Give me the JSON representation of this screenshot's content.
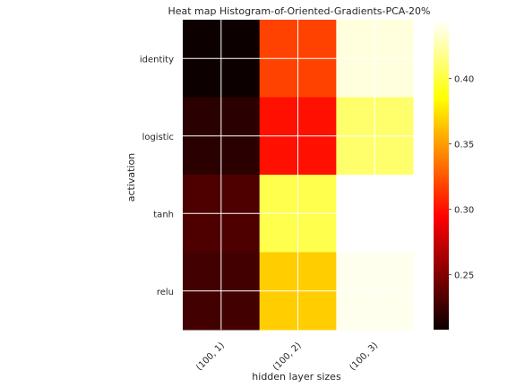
{
  "chart_data": {
    "type": "heatmap",
    "title": "Heat map Histogram-of-Oriented-Gradients-PCA-20%",
    "xlabel": "hidden layer sizes",
    "ylabel": "activation",
    "x_categories": [
      "(100, 1)",
      "(100, 2)",
      "(100, 3)"
    ],
    "y_categories": [
      "identity",
      "logistic",
      "tanh",
      "relu"
    ],
    "values": [
      [
        0.209,
        0.318,
        0.437
      ],
      [
        0.219,
        0.3,
        0.41
      ],
      [
        0.232,
        0.403,
        null
      ],
      [
        0.228,
        0.367,
        0.441
      ]
    ],
    "colormap": "hot",
    "vmin": 0.208,
    "vmax": 0.445,
    "colorbar_ticks": [
      0.25,
      0.3,
      0.35,
      0.4
    ],
    "colorbar_tick_labels": [
      "0.25",
      "0.30",
      "0.35",
      "0.40"
    ],
    "grid": true,
    "missing_cell_color": "#ffffff"
  }
}
